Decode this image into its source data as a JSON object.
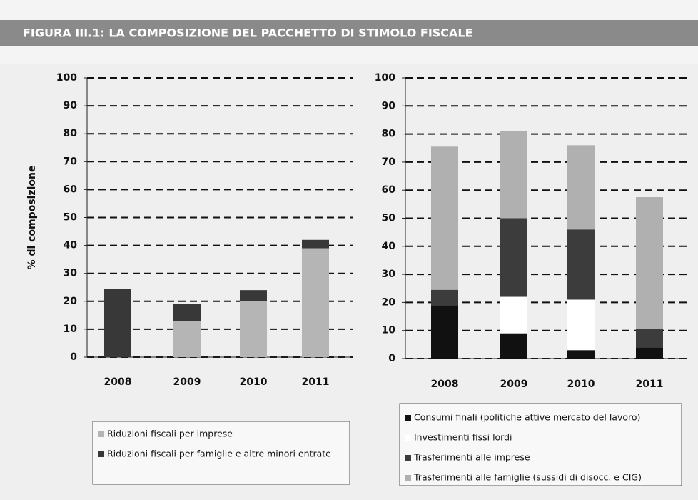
{
  "figure_title": "FIGURA III.1: LA COMPOSIZIONE DEL PACCHETTO DI STIMOLO FISCALE",
  "chart_data": [
    {
      "type": "stacked_bar",
      "y_label": "% di composizione",
      "categories": [
        "2008",
        "2009",
        "2010",
        "2011"
      ],
      "ylim": [
        0,
        100
      ],
      "yticks": [
        0,
        10,
        20,
        30,
        40,
        50,
        60,
        70,
        80,
        90,
        100
      ],
      "grid": true,
      "series": [
        {
          "name": "Riduzioni fiscali per imprese",
          "color": "#b5b5b5",
          "values": [
            0,
            13,
            20,
            39
          ]
        },
        {
          "name": "Riduzioni fiscali per famiglie e altre minori entrate",
          "color": "#383838",
          "values": [
            24.5,
            6,
            4,
            3
          ]
        }
      ]
    },
    {
      "type": "stacked_bar",
      "categories": [
        "2008",
        "2009",
        "2010",
        "2011"
      ],
      "ylim": [
        0,
        100
      ],
      "yticks": [
        0,
        10,
        20,
        30,
        40,
        50,
        60,
        70,
        80,
        90,
        100
      ],
      "grid": true,
      "series": [
        {
          "name": "Consumi finali (politiche attive mercato del lavoro)",
          "color": "#111111",
          "values": [
            19,
            9,
            3,
            4
          ]
        },
        {
          "name": "Investimenti fissi lordi",
          "color": "#ffffff",
          "values": [
            0,
            13,
            18,
            0
          ]
        },
        {
          "name": "Trasferimenti alle imprese",
          "color": "#3c3c3c",
          "values": [
            5.5,
            28,
            25,
            6.5
          ]
        },
        {
          "name": "Trasferimenti alle famiglie (sussidi di disocc. e CIG)",
          "color": "#b0b0b0",
          "values": [
            51,
            31,
            30,
            47
          ]
        }
      ]
    }
  ]
}
